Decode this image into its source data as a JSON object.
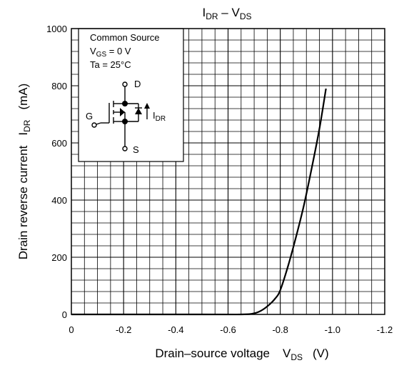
{
  "chart_data": {
    "type": "line",
    "title": {
      "main": "I",
      "main_sub": "DR",
      "sep": " – V",
      "sep_sub": "DS"
    },
    "xlabel": {
      "text": "Drain–source voltage",
      "sym": "V",
      "sym_sub": "DS",
      "unit": "(V)"
    },
    "ylabel": {
      "text": "Drain reverse current",
      "sym": "I",
      "sym_sub": "DR",
      "unit": "(mA)"
    },
    "xlim": [
      0,
      -1.2
    ],
    "ylim": [
      0,
      1000
    ],
    "x_ticks": [
      "0",
      "-0.2",
      "-0.4",
      "-0.6",
      "-0.8",
      "-1.0",
      "-1.2"
    ],
    "x_tick_values": [
      0,
      -0.2,
      -0.4,
      -0.6,
      -0.8,
      -1.0,
      -1.2
    ],
    "y_ticks": [
      "0",
      "200",
      "400",
      "600",
      "800",
      "1000"
    ],
    "y_tick_values": [
      0,
      200,
      400,
      600,
      800,
      1000
    ],
    "grid": true,
    "series": [
      {
        "x": [
          0,
          -0.5,
          -0.65,
          -0.69,
          -0.72,
          -0.75,
          -0.78,
          -0.8,
          -0.83,
          -0.86,
          -0.89,
          -0.92,
          -0.95,
          -0.975
        ],
        "y": [
          0,
          0,
          0,
          2,
          10,
          28,
          55,
          85,
          170,
          270,
          380,
          510,
          650,
          790
        ]
      }
    ],
    "annotation": {
      "line1": "Common Source",
      "line2": "V",
      "line2_sub": "GS",
      "line2_rest": " = 0 V",
      "line3": "Ta = 25°C",
      "pin_d": "D",
      "pin_g": "G",
      "pin_s": "S",
      "current": "I",
      "current_sub": "DR"
    }
  }
}
